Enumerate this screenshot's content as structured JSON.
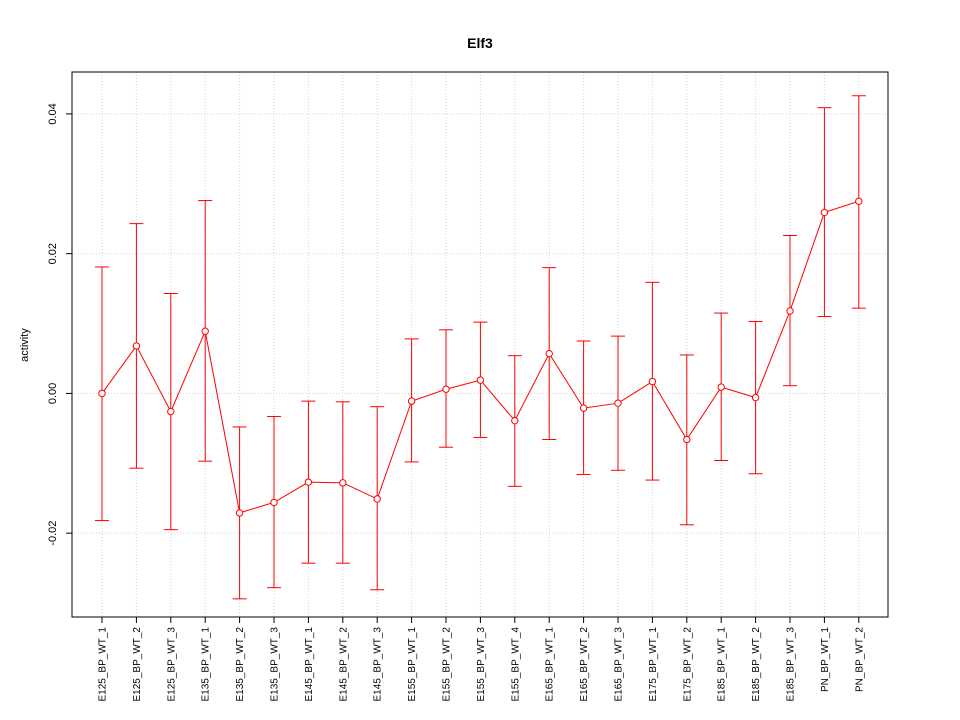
{
  "chart_data": {
    "type": "line",
    "title": "Elf3",
    "xlabel": "",
    "ylabel": "activity",
    "ylim": [
      -0.032,
      0.046
    ],
    "yticks": [
      "-0.02",
      "0.00",
      "0.02",
      "0.04"
    ],
    "ytick_values": [
      -0.02,
      0.0,
      0.02,
      0.04
    ],
    "grid": true,
    "color": "#ff0000",
    "grid_color": "#d3d3d3",
    "categories": [
      "E125_BP_WT_1",
      "E125_BP_WT_2",
      "E125_BP_WT_3",
      "E135_BP_WT_1",
      "E135_BP_WT_2",
      "E135_BP_WT_3",
      "E145_BP_WT_1",
      "E145_BP_WT_2",
      "E145_BP_WT_3",
      "E155_BP_WT_1",
      "E155_BP_WT_2",
      "E155_BP_WT_3",
      "E155_BP_WT_4",
      "E165_BP_WT_1",
      "E165_BP_WT_2",
      "E165_BP_WT_3",
      "E175_BP_WT_1",
      "E175_BP_WT_2",
      "E185_BP_WT_1",
      "E185_BP_WT_2",
      "E185_BP_WT_3",
      "PN_BP_WT_1",
      "PN_BP_WT_2"
    ],
    "values": [
      0.0,
      0.0068,
      -0.0026,
      0.0089,
      -0.0171,
      -0.0156,
      -0.0127,
      -0.0128,
      -0.0151,
      -0.0011,
      0.0006,
      0.0019,
      -0.0039,
      0.0057,
      -0.0021,
      -0.0014,
      0.0017,
      -0.0066,
      0.0009,
      -0.0006,
      0.0118,
      0.0259,
      0.0275
    ],
    "lower": [
      -0.0182,
      -0.0107,
      -0.0195,
      -0.0097,
      -0.0294,
      -0.0278,
      -0.0243,
      -0.0243,
      -0.0281,
      -0.0098,
      -0.0077,
      -0.0063,
      -0.0133,
      -0.0066,
      -0.0116,
      -0.011,
      -0.0124,
      -0.0188,
      -0.0096,
      -0.0115,
      0.0011,
      0.011,
      0.0122
    ],
    "upper": [
      0.0181,
      0.0243,
      0.0143,
      0.0276,
      -0.0048,
      -0.0033,
      -0.0011,
      -0.0012,
      -0.0019,
      0.0078,
      0.0091,
      0.0102,
      0.0054,
      0.018,
      0.0075,
      0.0082,
      0.0159,
      0.0055,
      0.0115,
      0.0103,
      0.0226,
      0.0409,
      0.0426
    ]
  }
}
